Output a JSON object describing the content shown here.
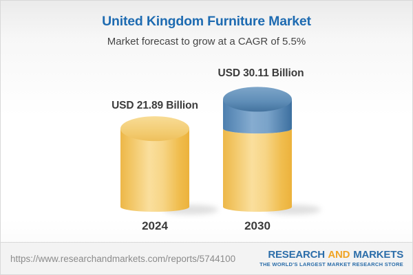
{
  "header": {
    "title": "United Kingdom Furniture Market",
    "subtitle": "Market forecast to grow at a CAGR of 5.5%",
    "title_color": "#1e6bb1"
  },
  "chart_data": {
    "type": "bar",
    "style": "3d-cylinder",
    "title": "United Kingdom Furniture Market",
    "subtitle": "Market forecast to grow at a CAGR of 5.5%",
    "categories": [
      "2024",
      "2030"
    ],
    "values": [
      21.89,
      30.11
    ],
    "unit": "USD Billion",
    "cagr_percent": 5.5,
    "axes": "none",
    "legend": "none",
    "bars": [
      {
        "category": "2024",
        "label": "USD 21.89 Billion",
        "total": 21.89,
        "base": 21.89
      },
      {
        "category": "2030",
        "label": "USD 30.11 Billion",
        "total": 30.11,
        "base": 21.89
      }
    ],
    "colors": {
      "base_segment": "#f5c967",
      "growth_segment": "#5e8db7",
      "label_text": "#3b3b3b"
    }
  },
  "footer": {
    "url": "https://www.researchandmarkets.com/reports/5744100",
    "logo_line1": [
      {
        "text": "RESEARCH",
        "color": "#2b6da9"
      },
      {
        "text": "AND",
        "color": "#f0a425"
      },
      {
        "text": "MARKETS",
        "color": "#2b6da9"
      }
    ],
    "logo_tagline": "THE WORLD'S LARGEST MARKET RESEARCH STORE",
    "logo_tagline_color": "#2b6da9"
  }
}
